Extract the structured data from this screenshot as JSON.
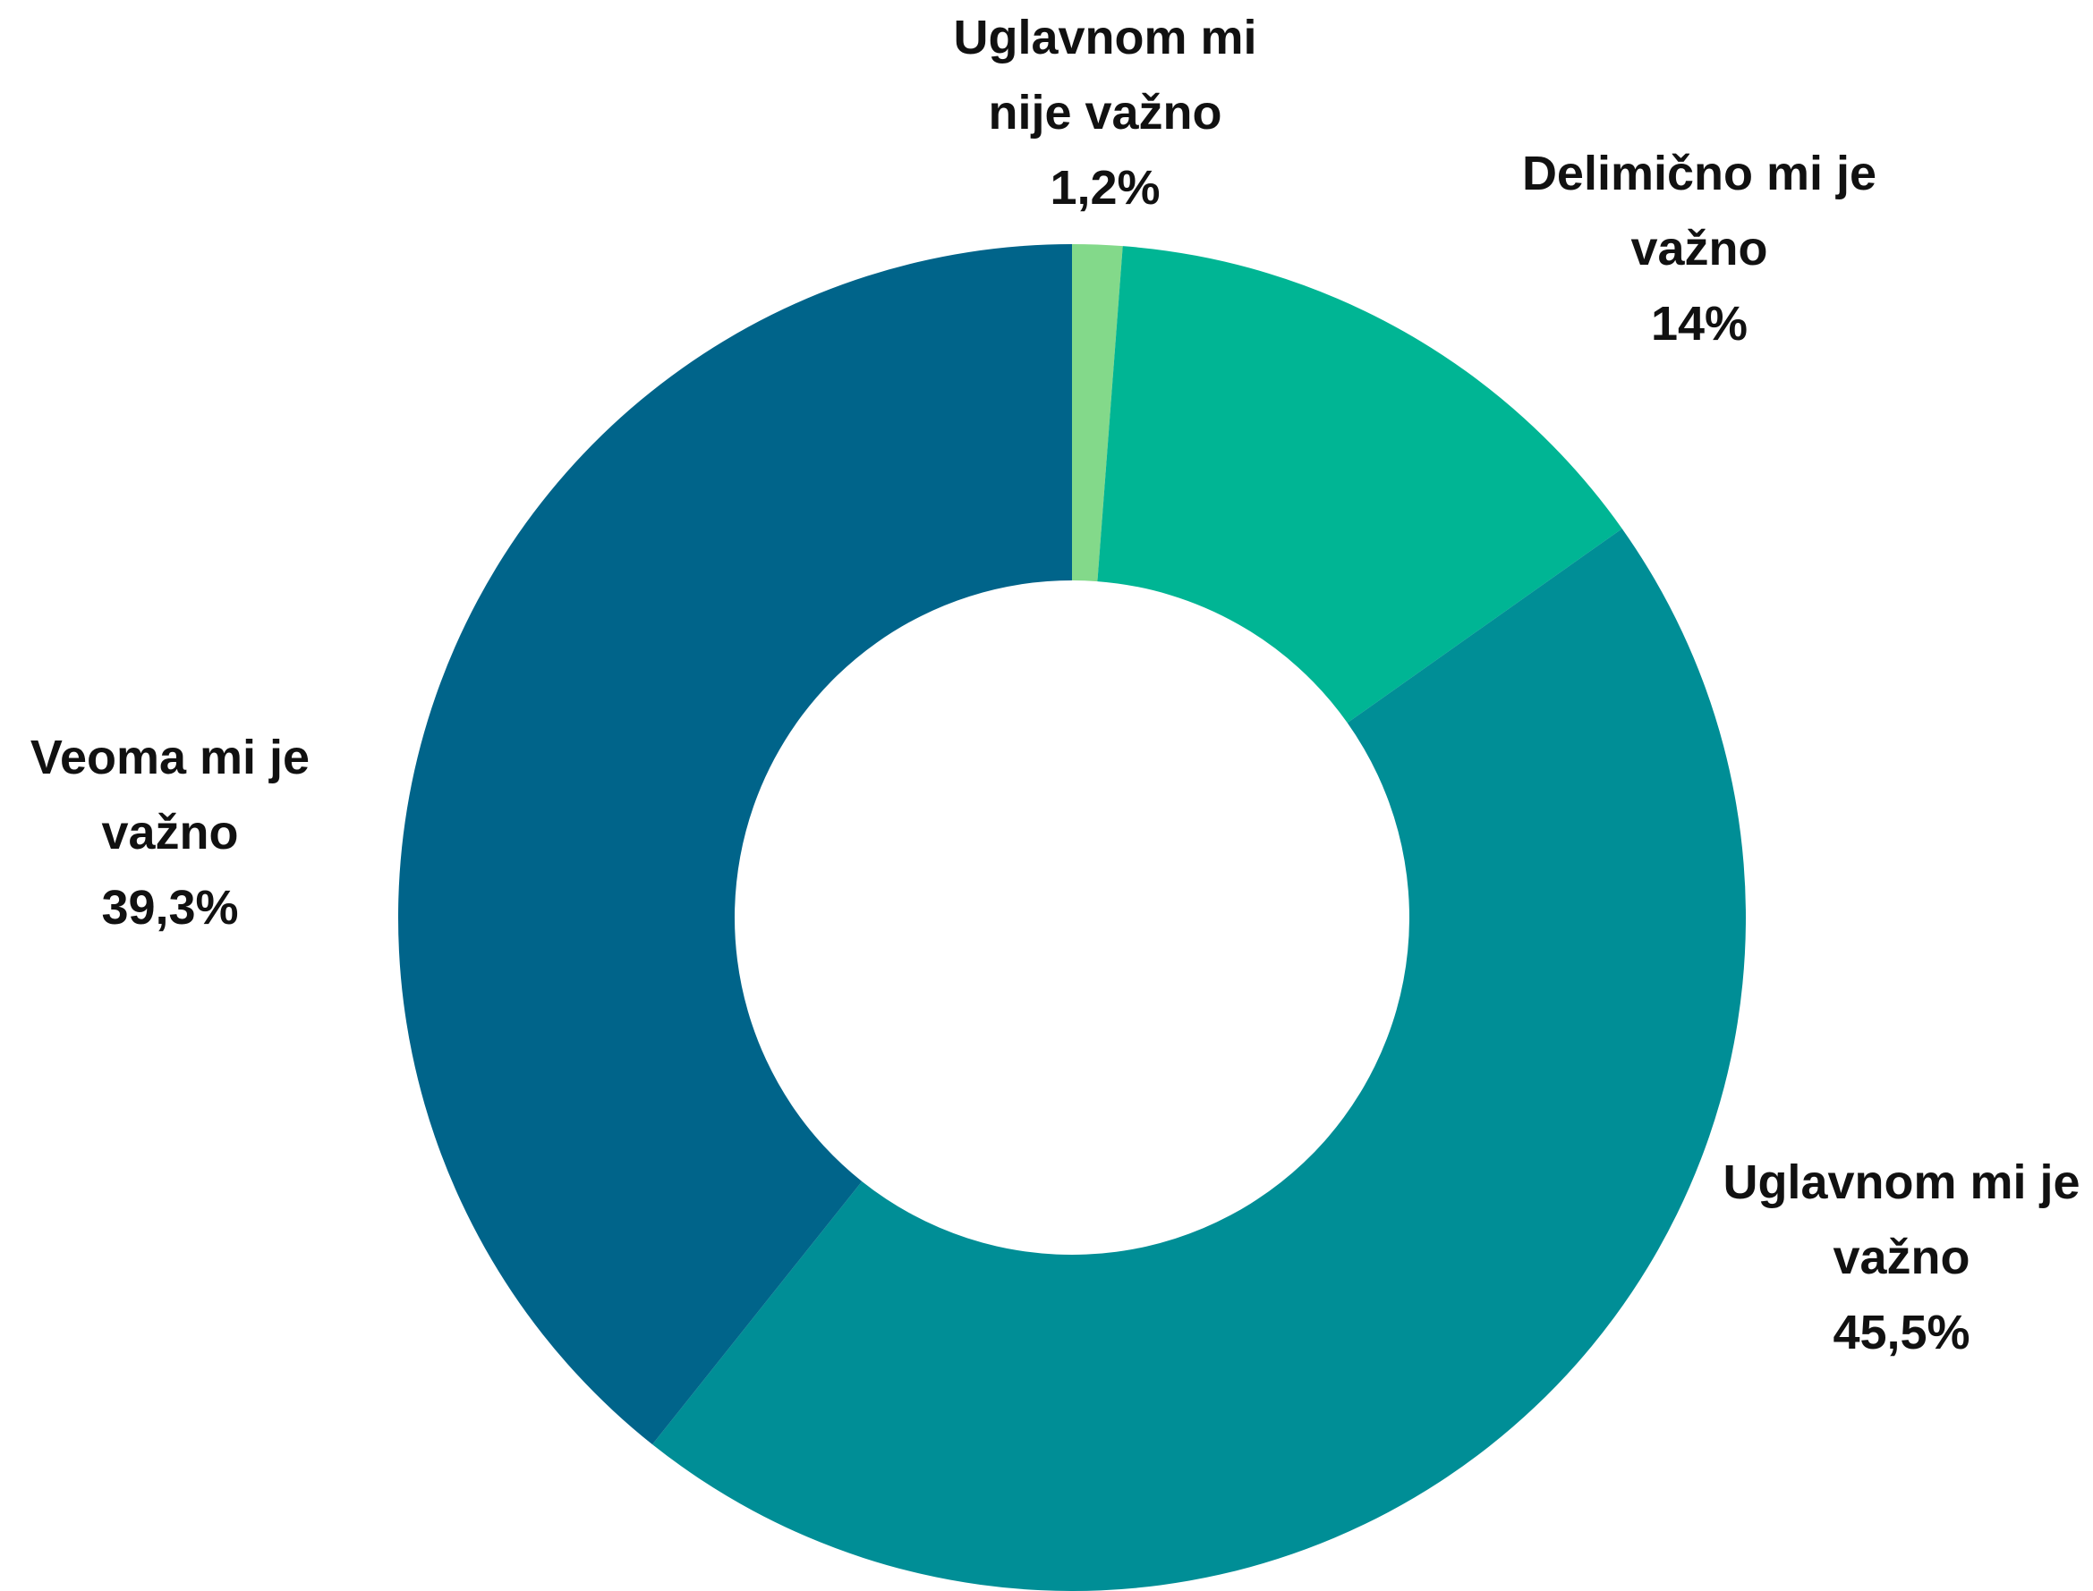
{
  "chart_data": {
    "type": "donut",
    "categories": [
      "Uglavnom mi nije važno",
      "Delimično mi je važno",
      "Uglavnom mi je važno",
      "Veoma mi je važno"
    ],
    "values": [
      1.2,
      14,
      45.5,
      39.3
    ],
    "value_labels": [
      "1,2%",
      "14%",
      "45,5%",
      "39,3%"
    ],
    "colors": [
      "#83d98a",
      "#00b594",
      "#008e96",
      "#00648a"
    ]
  }
}
